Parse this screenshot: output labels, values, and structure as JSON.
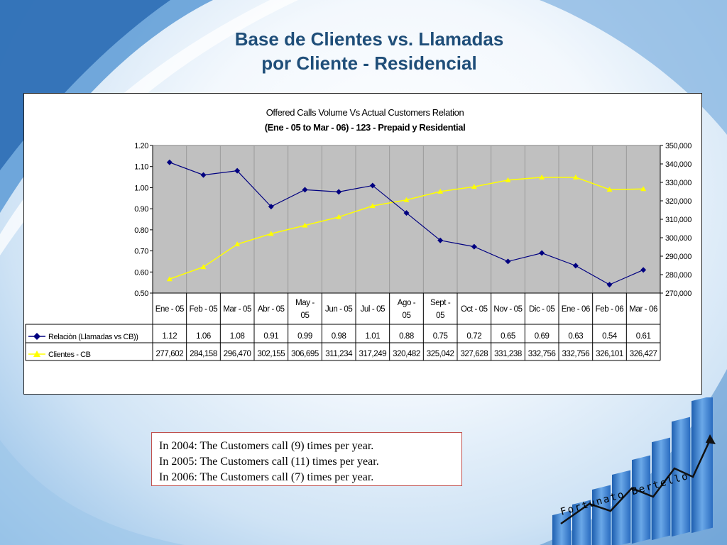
{
  "slide": {
    "title_line1": "Base de Clientes vs. Llamadas",
    "title_line2": "por Cliente - Residencial"
  },
  "notes": [
    "In 2004: The Customers call  (9) times per year.",
    "In 2005: The Customers call (11) times per year.",
    "In 2006: The Customers call (7) times per year."
  ],
  "signature": "Fortunato Bertello",
  "colors": {
    "plot_bg": "#c0c0c0",
    "ratio_series": "#000080",
    "customers_series": "#ffff00",
    "title": "#1f4e79",
    "note_border": "#c0504d"
  },
  "chart_data": {
    "type": "line",
    "title": "Offered Calls Volume Vs Actual  Customers Relation",
    "subtitle": "(Ene - 05 to Mar - 06) - 123 - Prepaid y Residential",
    "categories": [
      [
        "Ene - 05"
      ],
      [
        "Feb - 05"
      ],
      [
        "Mar - 05"
      ],
      [
        "Abr - 05"
      ],
      [
        "May -",
        "05"
      ],
      [
        "Jun - 05"
      ],
      [
        "Jul - 05"
      ],
      [
        "Ago -",
        "05"
      ],
      [
        "Sept -",
        "05"
      ],
      [
        "Oct - 05"
      ],
      [
        "Nov - 05"
      ],
      [
        "Dic - 05"
      ],
      [
        "Ene - 06"
      ],
      [
        "Feb - 06"
      ],
      [
        "Mar - 06"
      ]
    ],
    "series": [
      {
        "name": "Relaciòn (Llamadas vs CB))",
        "axis": "left",
        "marker": "diamond",
        "values": [
          1.12,
          1.06,
          1.08,
          0.91,
          0.99,
          0.98,
          1.01,
          0.88,
          0.75,
          0.72,
          0.65,
          0.69,
          0.63,
          0.54,
          0.61
        ],
        "labels": [
          "1.12",
          "1.06",
          "1.08",
          "0.91",
          "0.99",
          "0.98",
          "1.01",
          "0.88",
          "0.75",
          "0.72",
          "0.65",
          "0.69",
          "0.63",
          "0.54",
          "0.61"
        ]
      },
      {
        "name": "Clientes  - CB",
        "axis": "right",
        "marker": "triangle",
        "values": [
          277602,
          284158,
          296470,
          302155,
          306695,
          311234,
          317249,
          320482,
          325042,
          327628,
          331238,
          332756,
          332756,
          326101,
          326427
        ],
        "labels": [
          "277,602",
          "284,158",
          "296,470",
          "302,155",
          "306,695",
          "311,234",
          "317,249",
          "320,482",
          "325,042",
          "327,628",
          "331,238",
          "332,756",
          "332,756",
          "326,101",
          "326,427"
        ]
      }
    ],
    "y_left": {
      "range": [
        0.5,
        1.2
      ],
      "ticks": [
        1.2,
        1.1,
        1.0,
        0.9,
        0.8,
        0.7,
        0.6,
        0.5
      ],
      "tick_labels": [
        "1.20",
        "1.10",
        "1.00",
        "0.90",
        "0.80",
        "0.70",
        "0.60",
        "0.50"
      ]
    },
    "y_right": {
      "range": [
        270000,
        350000
      ],
      "ticks": [
        350000,
        340000,
        330000,
        320000,
        310000,
        300000,
        290000,
        280000,
        270000
      ],
      "tick_labels": [
        "350,000",
        "340,000",
        "330,000",
        "320,000",
        "310,000",
        "300,000",
        "290,000",
        "280,000",
        "270,000"
      ]
    },
    "grid": "vertical",
    "legend": "data-table"
  }
}
